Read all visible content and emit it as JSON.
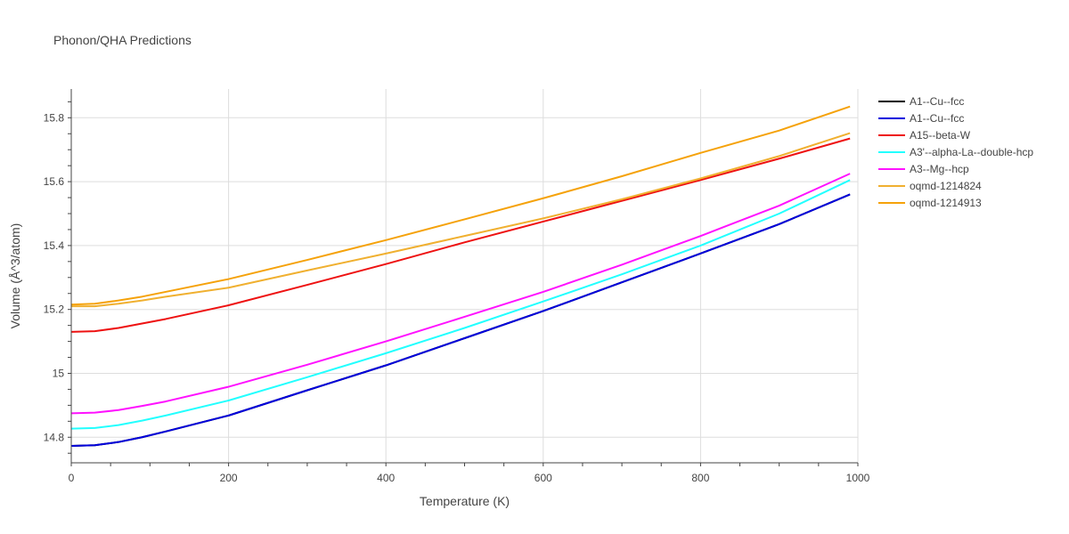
{
  "chart_data": {
    "type": "line",
    "title": "Phonon/QHA Predictions",
    "xlabel": "Temperature (K)",
    "ylabel": "Volume (Å^3/atom)",
    "xlim": [
      0,
      1000
    ],
    "ylim": [
      14.72,
      15.89
    ],
    "x_ticks": [
      0,
      200,
      400,
      600,
      800,
      1000
    ],
    "x_tick_labels": [
      "0",
      "200",
      "400",
      "600",
      "800",
      "1000"
    ],
    "y_ticks": [
      14.8,
      15.0,
      15.2,
      15.4,
      15.6,
      15.8
    ],
    "y_tick_labels": [
      "14.8",
      "15",
      "15.2",
      "15.4",
      "15.6",
      "15.8"
    ],
    "grid": true,
    "legend_position": "right",
    "x": [
      0,
      30,
      60,
      90,
      120,
      200,
      300,
      400,
      500,
      600,
      700,
      800,
      900,
      990
    ],
    "series": [
      {
        "name": "A1--Cu--fcc",
        "color": "#000000",
        "values": [
          14.773,
          14.775,
          14.785,
          14.8,
          14.818,
          14.868,
          14.947,
          15.025,
          15.11,
          15.195,
          15.285,
          15.375,
          15.467,
          15.56
        ]
      },
      {
        "name": "A1--Cu--fcc",
        "color": "#0000dd",
        "values": [
          14.773,
          14.775,
          14.785,
          14.8,
          14.818,
          14.868,
          14.947,
          15.025,
          15.11,
          15.195,
          15.285,
          15.375,
          15.467,
          15.56
        ]
      },
      {
        "name": "A15--beta-W",
        "color": "#ee1111",
        "values": [
          15.13,
          15.132,
          15.142,
          15.156,
          15.17,
          15.213,
          15.277,
          15.342,
          15.41,
          15.475,
          15.54,
          15.605,
          15.672,
          15.735
        ]
      },
      {
        "name": "A3'--alpha-La--double-hcp",
        "color": "#22ffff",
        "values": [
          14.827,
          14.829,
          14.838,
          14.852,
          14.868,
          14.915,
          14.988,
          15.063,
          15.142,
          15.225,
          15.31,
          15.4,
          15.5,
          15.605
        ]
      },
      {
        "name": "A3--Mg--hcp",
        "color": "#ff11ff",
        "values": [
          14.875,
          14.877,
          14.885,
          14.898,
          14.912,
          14.958,
          15.027,
          15.1,
          15.177,
          15.255,
          15.34,
          15.43,
          15.525,
          15.625
        ]
      },
      {
        "name": "oqmd-1214824",
        "color": "#f0b030",
        "values": [
          15.21,
          15.21,
          15.218,
          15.228,
          15.24,
          15.268,
          15.322,
          15.375,
          15.43,
          15.485,
          15.545,
          15.61,
          15.68,
          15.752
        ]
      },
      {
        "name": "oqmd-1214913",
        "color": "#f5a20a",
        "values": [
          15.215,
          15.218,
          15.228,
          15.24,
          15.255,
          15.295,
          15.355,
          15.417,
          15.482,
          15.548,
          15.617,
          15.69,
          15.76,
          15.835
        ]
      }
    ]
  }
}
